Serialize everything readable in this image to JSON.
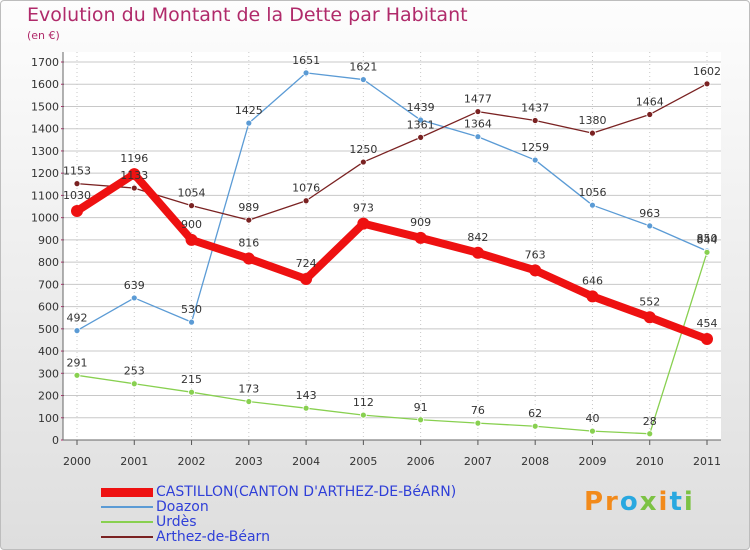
{
  "header": {
    "title": "Evolution du Montant de la Dette par Habitant",
    "subtitle": "(en €)"
  },
  "colors": {
    "title": "#b02a6a",
    "legend_text": "#2f3fd8",
    "grid": "#c8c8c8",
    "axis": "#333333"
  },
  "brand": {
    "text": "Proxiti"
  },
  "chart_data": {
    "type": "line",
    "title": "Evolution du Montant de la Dette par Habitant",
    "ylabel": "(en €)",
    "x": [
      "2000",
      "2001",
      "2002",
      "2003",
      "2004",
      "2005",
      "2006",
      "2007",
      "2008",
      "2009",
      "2010",
      "2011"
    ],
    "ylim": [
      0,
      1700
    ],
    "yticks": [
      0,
      100,
      200,
      300,
      400,
      500,
      600,
      700,
      800,
      900,
      1000,
      1100,
      1200,
      1300,
      1400,
      1500,
      1600,
      1700
    ],
    "grid": true,
    "legend_position": "bottom-left",
    "series": [
      {
        "name": "CASTILLON(CANTON D'ARTHEZ-DE-BéARN)",
        "color": "#ee1111",
        "values": [
          1030,
          1196,
          900,
          816,
          724,
          973,
          909,
          842,
          763,
          646,
          552,
          454
        ]
      },
      {
        "name": "Doazon",
        "color": "#5b9bd5",
        "values": [
          492,
          639,
          530,
          1425,
          1651,
          1621,
          1439,
          1364,
          1259,
          1056,
          963,
          850
        ]
      },
      {
        "name": "Urdès",
        "color": "#88d050",
        "values": [
          291,
          253,
          215,
          173,
          143,
          112,
          91,
          76,
          62,
          40,
          28,
          844
        ]
      },
      {
        "name": "Arthez-de-Béarn",
        "color": "#7a2222",
        "values": [
          1153,
          1133,
          1054,
          989,
          1076,
          1250,
          1361,
          1477,
          1437,
          1380,
          1464,
          1602
        ]
      }
    ]
  }
}
